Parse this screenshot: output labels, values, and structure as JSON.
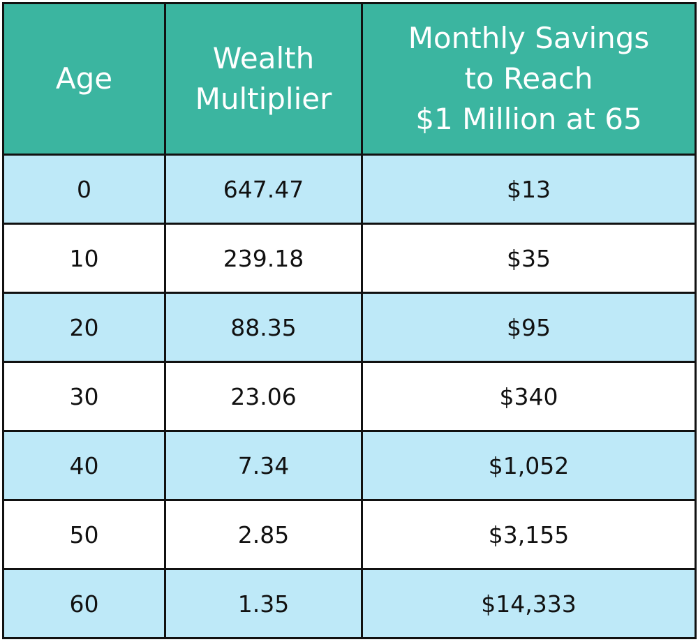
{
  "table": {
    "header": [
      [
        "Age"
      ],
      [
        "Wealth",
        "Multiplier"
      ],
      [
        "Monthly Savings",
        "to Reach",
        "$1 Million at 65"
      ]
    ],
    "rows": [
      [
        "0",
        "647.47",
        "$13"
      ],
      [
        "10",
        "239.18",
        "$35"
      ],
      [
        "20",
        "88.35",
        "$95"
      ],
      [
        "30",
        "23.06",
        "$340"
      ],
      [
        "40",
        "7.34",
        "$1,052"
      ],
      [
        "50",
        "2.85",
        "$3,155"
      ],
      [
        "60",
        "1.35",
        "$14,333"
      ]
    ]
  }
}
